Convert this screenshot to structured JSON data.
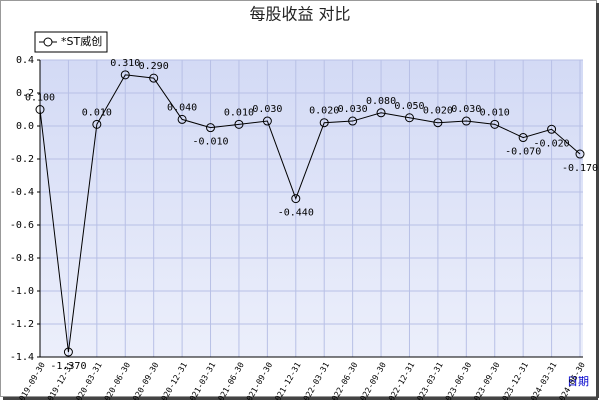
{
  "chart_data": {
    "type": "line",
    "title": "每股收益 对比",
    "x_label": "日期",
    "categories": [
      "2019-09-30",
      "2019-12-31",
      "2020-03-31",
      "2020-06-30",
      "2020-09-30",
      "2020-12-31",
      "2021-03-31",
      "2021-06-30",
      "2021-09-30",
      "2021-12-31",
      "2022-03-31",
      "2022-06-30",
      "2022-09-30",
      "2022-12-31",
      "2023-03-31",
      "2023-06-30",
      "2023-09-30",
      "2023-12-31",
      "2024-03-31",
      "2024-06-30"
    ],
    "series": [
      {
        "name": "*ST威创",
        "color": "#000000",
        "values": [
          0.1,
          -1.37,
          0.01,
          0.31,
          0.29,
          0.04,
          -0.01,
          0.01,
          0.03,
          -0.44,
          0.02,
          0.03,
          0.08,
          0.05,
          0.02,
          0.03,
          0.01,
          -0.07,
          -0.02,
          -0.17
        ],
        "value_labels": [
          "0.100",
          "-1.370",
          "0.010",
          "0.310",
          "0.290",
          "0.040",
          "-0.010",
          "0.010",
          "0.030",
          "-0.440",
          "0.020",
          "0.030",
          "0.080",
          "0.050",
          "0.020",
          "0.030",
          "0.010",
          "-0.070",
          "-0.020",
          "-0.170"
        ]
      }
    ],
    "ylim": [
      -1.4,
      0.4
    ],
    "yticks": [
      0.4,
      0.2,
      {
        "value": 0,
        "label": "0.0"
      },
      -0.2,
      -0.4,
      -0.6,
      -0.8,
      {
        "value": -1,
        "label": "-1.0"
      },
      -1.2,
      -1.4
    ],
    "grid": true,
    "legend": "top-left"
  }
}
